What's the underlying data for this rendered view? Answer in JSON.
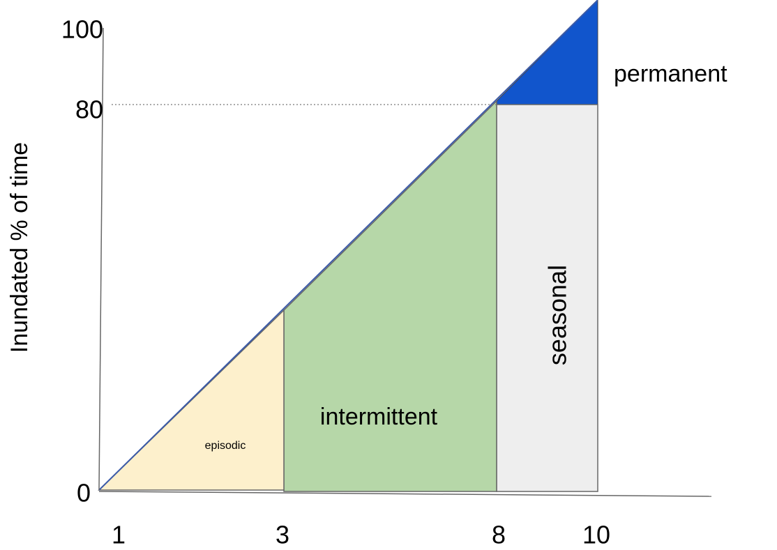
{
  "y_axis": {
    "label": "Inundated % of time",
    "ticks": [
      "100",
      "80",
      "0"
    ]
  },
  "x_axis": {
    "ticks": [
      "1",
      "3",
      "8",
      "10"
    ]
  },
  "regions": [
    {
      "label": "episodic"
    },
    {
      "label": "intermittent"
    },
    {
      "label": "seasonal"
    },
    {
      "label": "permanent"
    }
  ]
}
